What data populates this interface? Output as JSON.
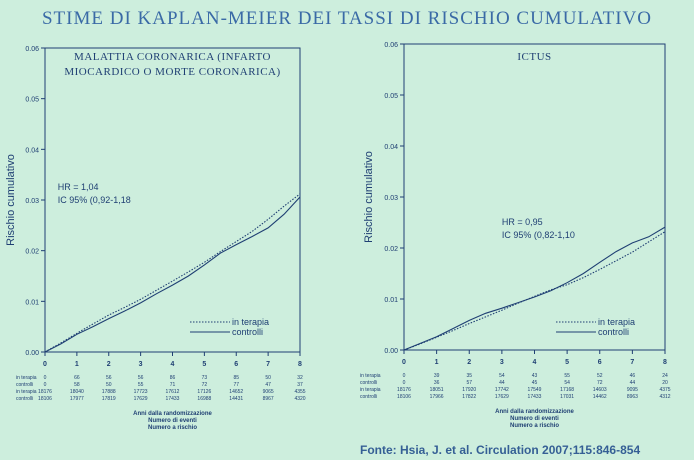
{
  "title": "STIME DI KAPLAN-MEIER DEI TASSI DI RISCHIO CUMULATIVO",
  "source": "Fonte: Hsia, J. et al. Circulation 2007;115:846-854",
  "colors": {
    "background": "#cdeedd",
    "title": "#3a6aa6",
    "axis": "#1f3f73",
    "curve": "#1f3f73"
  },
  "chart_data": [
    {
      "type": "line",
      "title": "MALATTIA CORONARICA (INFARTO MIOCARDICO O MORTE CORONARICA)",
      "title_lines": [
        "MALATTIA CORONARICA (INFARTO",
        "MIOCARDICO O MORTE CORONARICA)"
      ],
      "ylabel": "Rischio cumulativo",
      "xlabel_lines": [
        "Anni dalla randomizzazione",
        "Numero di eventi",
        "Numero a rischio"
      ],
      "xlim": [
        0,
        8
      ],
      "ylim": [
        0,
        0.06
      ],
      "xticks": [
        "0",
        "1",
        "2",
        "3",
        "4",
        "5",
        "6",
        "7",
        "8"
      ],
      "yticks": [
        "0.00",
        "0.01",
        "0.02",
        "0.03",
        "0.04",
        "0.05",
        "0.06"
      ],
      "annotation": [
        "HR = 1,04",
        "IC 95% (0,92-1,18"
      ],
      "legend": [
        "in terapia",
        "controlli"
      ],
      "series": [
        {
          "name": "in terapia",
          "style": "dotted",
          "x": [
            0,
            0.5,
            1,
            1.5,
            2,
            2.5,
            3,
            3.5,
            4,
            4.5,
            5,
            5.5,
            6,
            6.5,
            7,
            7.5,
            8
          ],
          "y": [
            0,
            0.0018,
            0.0037,
            0.0055,
            0.0073,
            0.0088,
            0.0104,
            0.0122,
            0.014,
            0.0158,
            0.0177,
            0.0198,
            0.0218,
            0.0238,
            0.0262,
            0.0288,
            0.0312
          ]
        },
        {
          "name": "controlli",
          "style": "solid",
          "x": [
            0,
            0.5,
            1,
            1.5,
            2,
            2.5,
            3,
            3.5,
            4,
            4.5,
            5,
            5.5,
            6,
            6.5,
            7,
            7.5,
            8
          ],
          "y": [
            0,
            0.0016,
            0.0035,
            0.005,
            0.0066,
            0.0081,
            0.0097,
            0.0115,
            0.0132,
            0.015,
            0.0172,
            0.0195,
            0.0212,
            0.0228,
            0.0245,
            0.0272,
            0.0306
          ]
        }
      ],
      "risk_table": {
        "row_labels": [
          "in terapia",
          "controlli",
          "in terapia",
          "controlli"
        ],
        "rows": [
          [
            "0",
            "66",
            "56",
            "56",
            "86",
            "73",
            "85",
            "50",
            "32"
          ],
          [
            "0",
            "58",
            "50",
            "55",
            "71",
            "72",
            "77",
            "47",
            "37"
          ],
          [
            "18176",
            "18040",
            "17888",
            "17723",
            "17612",
            "17126",
            "14652",
            "9065",
            "4355"
          ],
          [
            "18106",
            "17977",
            "17819",
            "17629",
            "17433",
            "16988",
            "14431",
            "8967",
            "4320"
          ]
        ]
      }
    },
    {
      "type": "line",
      "title": "ICTUS",
      "title_lines": [
        "ICTUS"
      ],
      "ylabel": "Rischio cumulativo",
      "xlabel_lines": [
        "Anni dalla randomizzazione",
        "Numero di eventi",
        "Numero a rischio"
      ],
      "xlim": [
        0,
        8
      ],
      "ylim": [
        0,
        0.06
      ],
      "xticks": [
        "0",
        "1",
        "2",
        "3",
        "4",
        "5",
        "6",
        "7",
        "8"
      ],
      "yticks": [
        "0.00",
        "0.01",
        "0.02",
        "0.03",
        "0.04",
        "0.05",
        "0.06"
      ],
      "annotation": [
        "HR = 0,95",
        "IC 95% (0,82-1,10"
      ],
      "legend": [
        "in terapia",
        "controlli"
      ],
      "series": [
        {
          "name": "in terapia",
          "style": "dotted",
          "x": [
            0,
            0.5,
            1,
            1.5,
            2,
            2.5,
            3,
            3.5,
            4,
            4.5,
            5,
            5.5,
            6,
            6.5,
            7,
            7.5,
            8
          ],
          "y": [
            0,
            0.0012,
            0.0025,
            0.0038,
            0.0052,
            0.0065,
            0.0078,
            0.0092,
            0.0105,
            0.0118,
            0.0128,
            0.0142,
            0.0158,
            0.0175,
            0.0192,
            0.0212,
            0.0232
          ]
        },
        {
          "name": "controlli",
          "style": "solid",
          "x": [
            0,
            0.5,
            1,
            1.5,
            2,
            2.5,
            3,
            3.5,
            4,
            4.5,
            5,
            5.5,
            6,
            6.5,
            7,
            7.5,
            8
          ],
          "y": [
            0,
            0.0013,
            0.0026,
            0.0042,
            0.0058,
            0.0072,
            0.0082,
            0.0093,
            0.0104,
            0.0116,
            0.0132,
            0.015,
            0.0172,
            0.0193,
            0.021,
            0.0222,
            0.0241
          ]
        }
      ],
      "risk_table": {
        "row_labels": [
          "in terapia",
          "controlli",
          "in terapia",
          "controlli"
        ],
        "rows": [
          [
            "0",
            "39",
            "35",
            "54",
            "43",
            "55",
            "52",
            "46",
            "24"
          ],
          [
            "0",
            "36",
            "57",
            "44",
            "45",
            "54",
            "72",
            "44",
            "20"
          ],
          [
            "18176",
            "18051",
            "17920",
            "17742",
            "17549",
            "17168",
            "14603",
            "9095",
            "4375"
          ],
          [
            "18106",
            "17966",
            "17822",
            "17629",
            "17433",
            "17031",
            "14462",
            "8963",
            "4312"
          ]
        ]
      }
    }
  ]
}
